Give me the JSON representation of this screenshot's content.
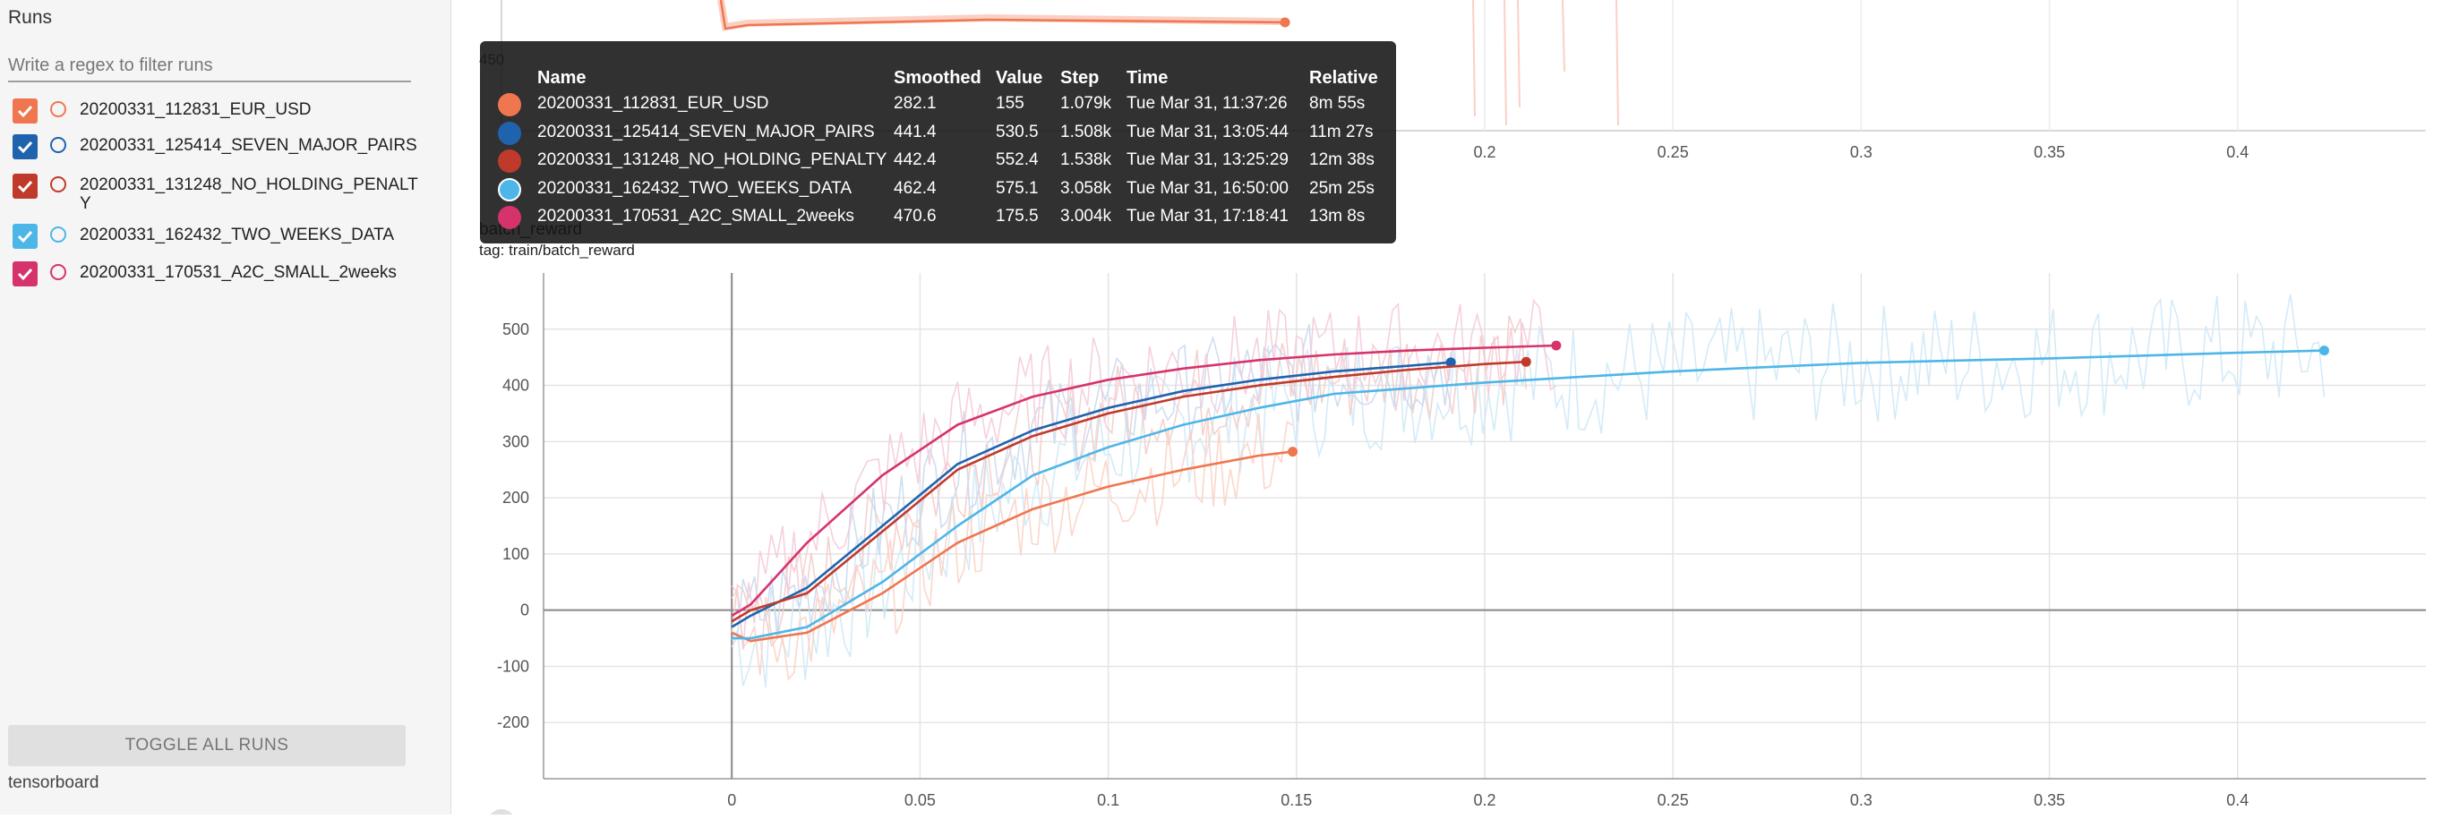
{
  "sidebar": {
    "title": "Runs",
    "filter_placeholder": "Write a regex to filter runs",
    "runs": [
      {
        "label": "20200331_112831_EUR_USD",
        "checked": true,
        "color": "#f0764f"
      },
      {
        "label": "20200331_125414_SEVEN_MAJOR_PAIRS",
        "checked": true,
        "color": "#1f63ae"
      },
      {
        "label": "20200331_131248_NO_HOLDING_PENALTY",
        "checked": true,
        "color": "#c03a2b"
      },
      {
        "label": "20200331_162432_TWO_WEEKS_DATA",
        "checked": true,
        "color": "#4db6e8"
      },
      {
        "label": "20200331_170531_A2C_SMALL_2weeks",
        "checked": true,
        "color": "#d6336c"
      }
    ],
    "toggle_label": "TOGGLE ALL RUNS",
    "brand": "tensorboard"
  },
  "top_chart": {
    "y_tick_partial": "450",
    "x_ticks": [
      "0.2",
      "0.25",
      "0.3",
      "0.35",
      "0.4"
    ]
  },
  "chart": {
    "title": "batch_reward",
    "tag": "tag: train/batch_reward"
  },
  "tooltip": {
    "headers": {
      "name": "Name",
      "smoothed": "Smoothed",
      "value": "Value",
      "step": "Step",
      "time": "Time",
      "relative": "Relative"
    },
    "rows": [
      {
        "name": "20200331_112831_EUR_USD",
        "smoothed": "282.1",
        "value": "155",
        "step": "1.079k",
        "time": "Tue Mar 31, 11:37:26",
        "relative": "8m 55s",
        "color": "#f0764f"
      },
      {
        "name": "20200331_125414_SEVEN_MAJOR_PAIRS",
        "smoothed": "441.4",
        "value": "530.5",
        "step": "1.508k",
        "time": "Tue Mar 31, 13:05:44",
        "relative": "11m 27s",
        "color": "#1f63ae"
      },
      {
        "name": "20200331_131248_NO_HOLDING_PENALTY",
        "smoothed": "442.4",
        "value": "552.4",
        "step": "1.538k",
        "time": "Tue Mar 31, 13:25:29",
        "relative": "12m 38s",
        "color": "#c03a2b"
      },
      {
        "name": "20200331_162432_TWO_WEEKS_DATA",
        "smoothed": "462.4",
        "value": "575.1",
        "step": "3.058k",
        "time": "Tue Mar 31, 16:50:00",
        "relative": "25m 25s",
        "color": "#4db6e8"
      },
      {
        "name": "20200331_170531_A2C_SMALL_2weeks",
        "smoothed": "470.6",
        "value": "175.5",
        "step": "3.004k",
        "time": "Tue Mar 31, 17:18:41",
        "relative": "13m 8s",
        "color": "#d6336c"
      }
    ]
  },
  "chart_data": {
    "type": "line",
    "title": "batch_reward",
    "xlabel": "",
    "ylabel": "",
    "xlim": [
      -0.05,
      0.45
    ],
    "ylim": [
      -300,
      600
    ],
    "x_ticks": [
      0,
      0.05,
      0.1,
      0.15,
      0.2,
      0.25,
      0.3,
      0.35,
      0.4
    ],
    "y_ticks": [
      -200,
      -100,
      0,
      100,
      200,
      300,
      400,
      500
    ],
    "grid": true,
    "series": [
      {
        "name": "20200331_112831_EUR_USD",
        "color": "#f0764f",
        "x": [
          0,
          0.005,
          0.02,
          0.04,
          0.06,
          0.08,
          0.1,
          0.12,
          0.14,
          0.149
        ],
        "y": [
          -40,
          -55,
          -40,
          30,
          120,
          180,
          220,
          250,
          275,
          282
        ]
      },
      {
        "name": "20200331_125414_SEVEN_MAJOR_PAIRS",
        "color": "#1f63ae",
        "x": [
          0,
          0.005,
          0.02,
          0.04,
          0.06,
          0.08,
          0.1,
          0.12,
          0.14,
          0.16,
          0.18,
          0.191
        ],
        "y": [
          -30,
          -10,
          40,
          150,
          260,
          320,
          360,
          390,
          410,
          425,
          435,
          441
        ]
      },
      {
        "name": "20200331_131248_NO_HOLDING_PENALTY",
        "color": "#c03a2b",
        "x": [
          0,
          0.005,
          0.02,
          0.04,
          0.06,
          0.08,
          0.1,
          0.12,
          0.14,
          0.16,
          0.18,
          0.2,
          0.211
        ],
        "y": [
          -20,
          0,
          30,
          140,
          250,
          310,
          350,
          380,
          400,
          415,
          428,
          438,
          442
        ]
      },
      {
        "name": "20200331_162432_TWO_WEEKS_DATA",
        "color": "#4db6e8",
        "x": [
          0,
          0.005,
          0.02,
          0.04,
          0.06,
          0.08,
          0.1,
          0.12,
          0.14,
          0.16,
          0.2,
          0.25,
          0.3,
          0.35,
          0.4,
          0.423
        ],
        "y": [
          -50,
          -50,
          -30,
          50,
          150,
          240,
          290,
          330,
          360,
          385,
          405,
          425,
          440,
          448,
          458,
          462
        ]
      },
      {
        "name": "20200331_170531_A2C_SMALL_2weeks",
        "color": "#d6336c",
        "x": [
          0,
          0.005,
          0.02,
          0.04,
          0.06,
          0.08,
          0.1,
          0.12,
          0.14,
          0.16,
          0.18,
          0.2,
          0.219
        ],
        "y": [
          -10,
          10,
          120,
          240,
          330,
          380,
          410,
          430,
          445,
          455,
          462,
          467,
          471
        ]
      }
    ]
  }
}
